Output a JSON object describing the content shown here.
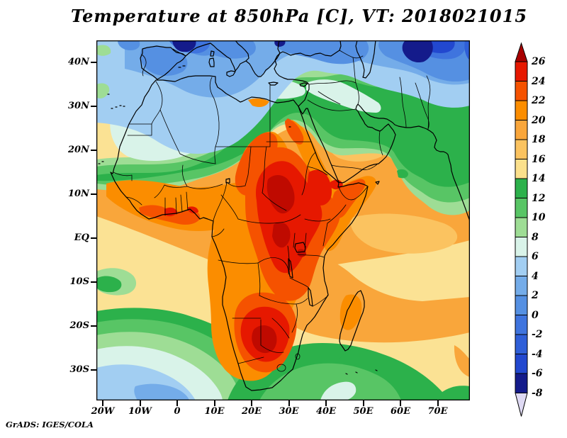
{
  "title": "Temperature at 850hPa [C], VT: 2018021015",
  "credit": "GrADS: IGES/COLA",
  "axes": {
    "lat": {
      "labels": [
        "40N",
        "30N",
        "20N",
        "10N",
        "EQ",
        "10S",
        "20S",
        "30S"
      ]
    },
    "lon": {
      "labels": [
        "20W",
        "10W",
        "0",
        "10E",
        "20E",
        "30E",
        "40E",
        "50E",
        "60E",
        "70E"
      ]
    }
  },
  "colorbar": {
    "tick_labels": [
      "26",
      "24",
      "22",
      "20",
      "18",
      "16",
      "14",
      "12",
      "10",
      "8",
      "6",
      "4",
      "2",
      "0",
      "-2",
      "-4",
      "-6",
      "-8"
    ],
    "segment_colors": [
      "#e61800",
      "#f55200",
      "#fb8d00",
      "#f9a63b",
      "#fbc360",
      "#fbe08c",
      "#2cb14b",
      "#58c565",
      "#9edd95",
      "#d9f3e9",
      "#a2cef2",
      "#74ace9",
      "#5590e2",
      "#3f74de",
      "#2f5fd8",
      "#2248cf",
      "#141b8b"
    ],
    "arrow_top_color": "#a80000",
    "arrow_bottom_color": "#ded9f3"
  },
  "chart_data": {
    "type": "filled-contour-map",
    "variable": "Temperature at 850hPa",
    "units": "C",
    "valid_time": "2018021015",
    "source_label": "GrADS: IGES/COLA",
    "lon_range": [
      "21W",
      "79E"
    ],
    "lat_range": [
      "37S",
      "45N"
    ],
    "contour_levels": [
      -8,
      -6,
      -4,
      -2,
      0,
      2,
      4,
      6,
      8,
      10,
      12,
      14,
      16,
      18,
      20,
      22,
      24,
      26
    ],
    "palette_low_to_high": [
      "#ded9f3",
      "#141b8b",
      "#2248cf",
      "#2f5fd8",
      "#3f74de",
      "#5590e2",
      "#74ace9",
      "#a2cef2",
      "#d9f3e9",
      "#9edd95",
      "#58c565",
      "#2cb14b",
      "#fbe08c",
      "#fbc360",
      "#f9a63b",
      "#fb8d00",
      "#f55200",
      "#e61800",
      "#a80000"
    ],
    "approx_field": [
      {
        "region": "Southern France / Gulf of Lion",
        "t_c": -8
      },
      {
        "region": "Eastern Turkey / Caucasus",
        "t_c": -7
      },
      {
        "region": "Iberia and western Mediterranean",
        "t_c": 0
      },
      {
        "region": "Northern Algeria / Libya coast",
        "t_c": 3
      },
      {
        "region": "Mauritania / northern Mali",
        "t_c": 7
      },
      {
        "region": "Sahel band 15-18N",
        "t_c": 13
      },
      {
        "region": "Levant / Iraq / Iran green belt",
        "t_c": 12
      },
      {
        "region": "Nile Valley Egypt",
        "t_c": 20
      },
      {
        "region": "Central Sahara (Niger / Chad ridge)",
        "t_c": 23
      },
      {
        "region": "Sudan / Chad / CAR hot core",
        "t_c": 27
      },
      {
        "region": "Ethiopia / Horn interior",
        "t_c": 25
      },
      {
        "region": "West African coast",
        "t_c": 23
      },
      {
        "region": "Tropical Atlantic",
        "t_c": 19
      },
      {
        "region": "Gulf of Guinea cool patch",
        "t_c": 13
      },
      {
        "region": "Congo basin",
        "t_c": 22
      },
      {
        "region": "Namibia / Botswana / South Africa interior",
        "t_c": 27
      },
      {
        "region": "South Atlantic 25-35S",
        "t_c": 11
      },
      {
        "region": "Southwest Atlantic cool center",
        "t_c": 4
      },
      {
        "region": "Subtropical Indian Ocean",
        "t_c": 16
      },
      {
        "region": "Mozambique Channel / Madagascar",
        "t_c": 19
      },
      {
        "region": "Southern Ocean swirl 35S",
        "t_c": 12
      },
      {
        "region": "Central Arabian Peninsula",
        "t_c": 17
      },
      {
        "region": "Persian Gulf green patch",
        "t_c": 12
      },
      {
        "region": "Northwest India",
        "t_c": 19
      }
    ]
  }
}
